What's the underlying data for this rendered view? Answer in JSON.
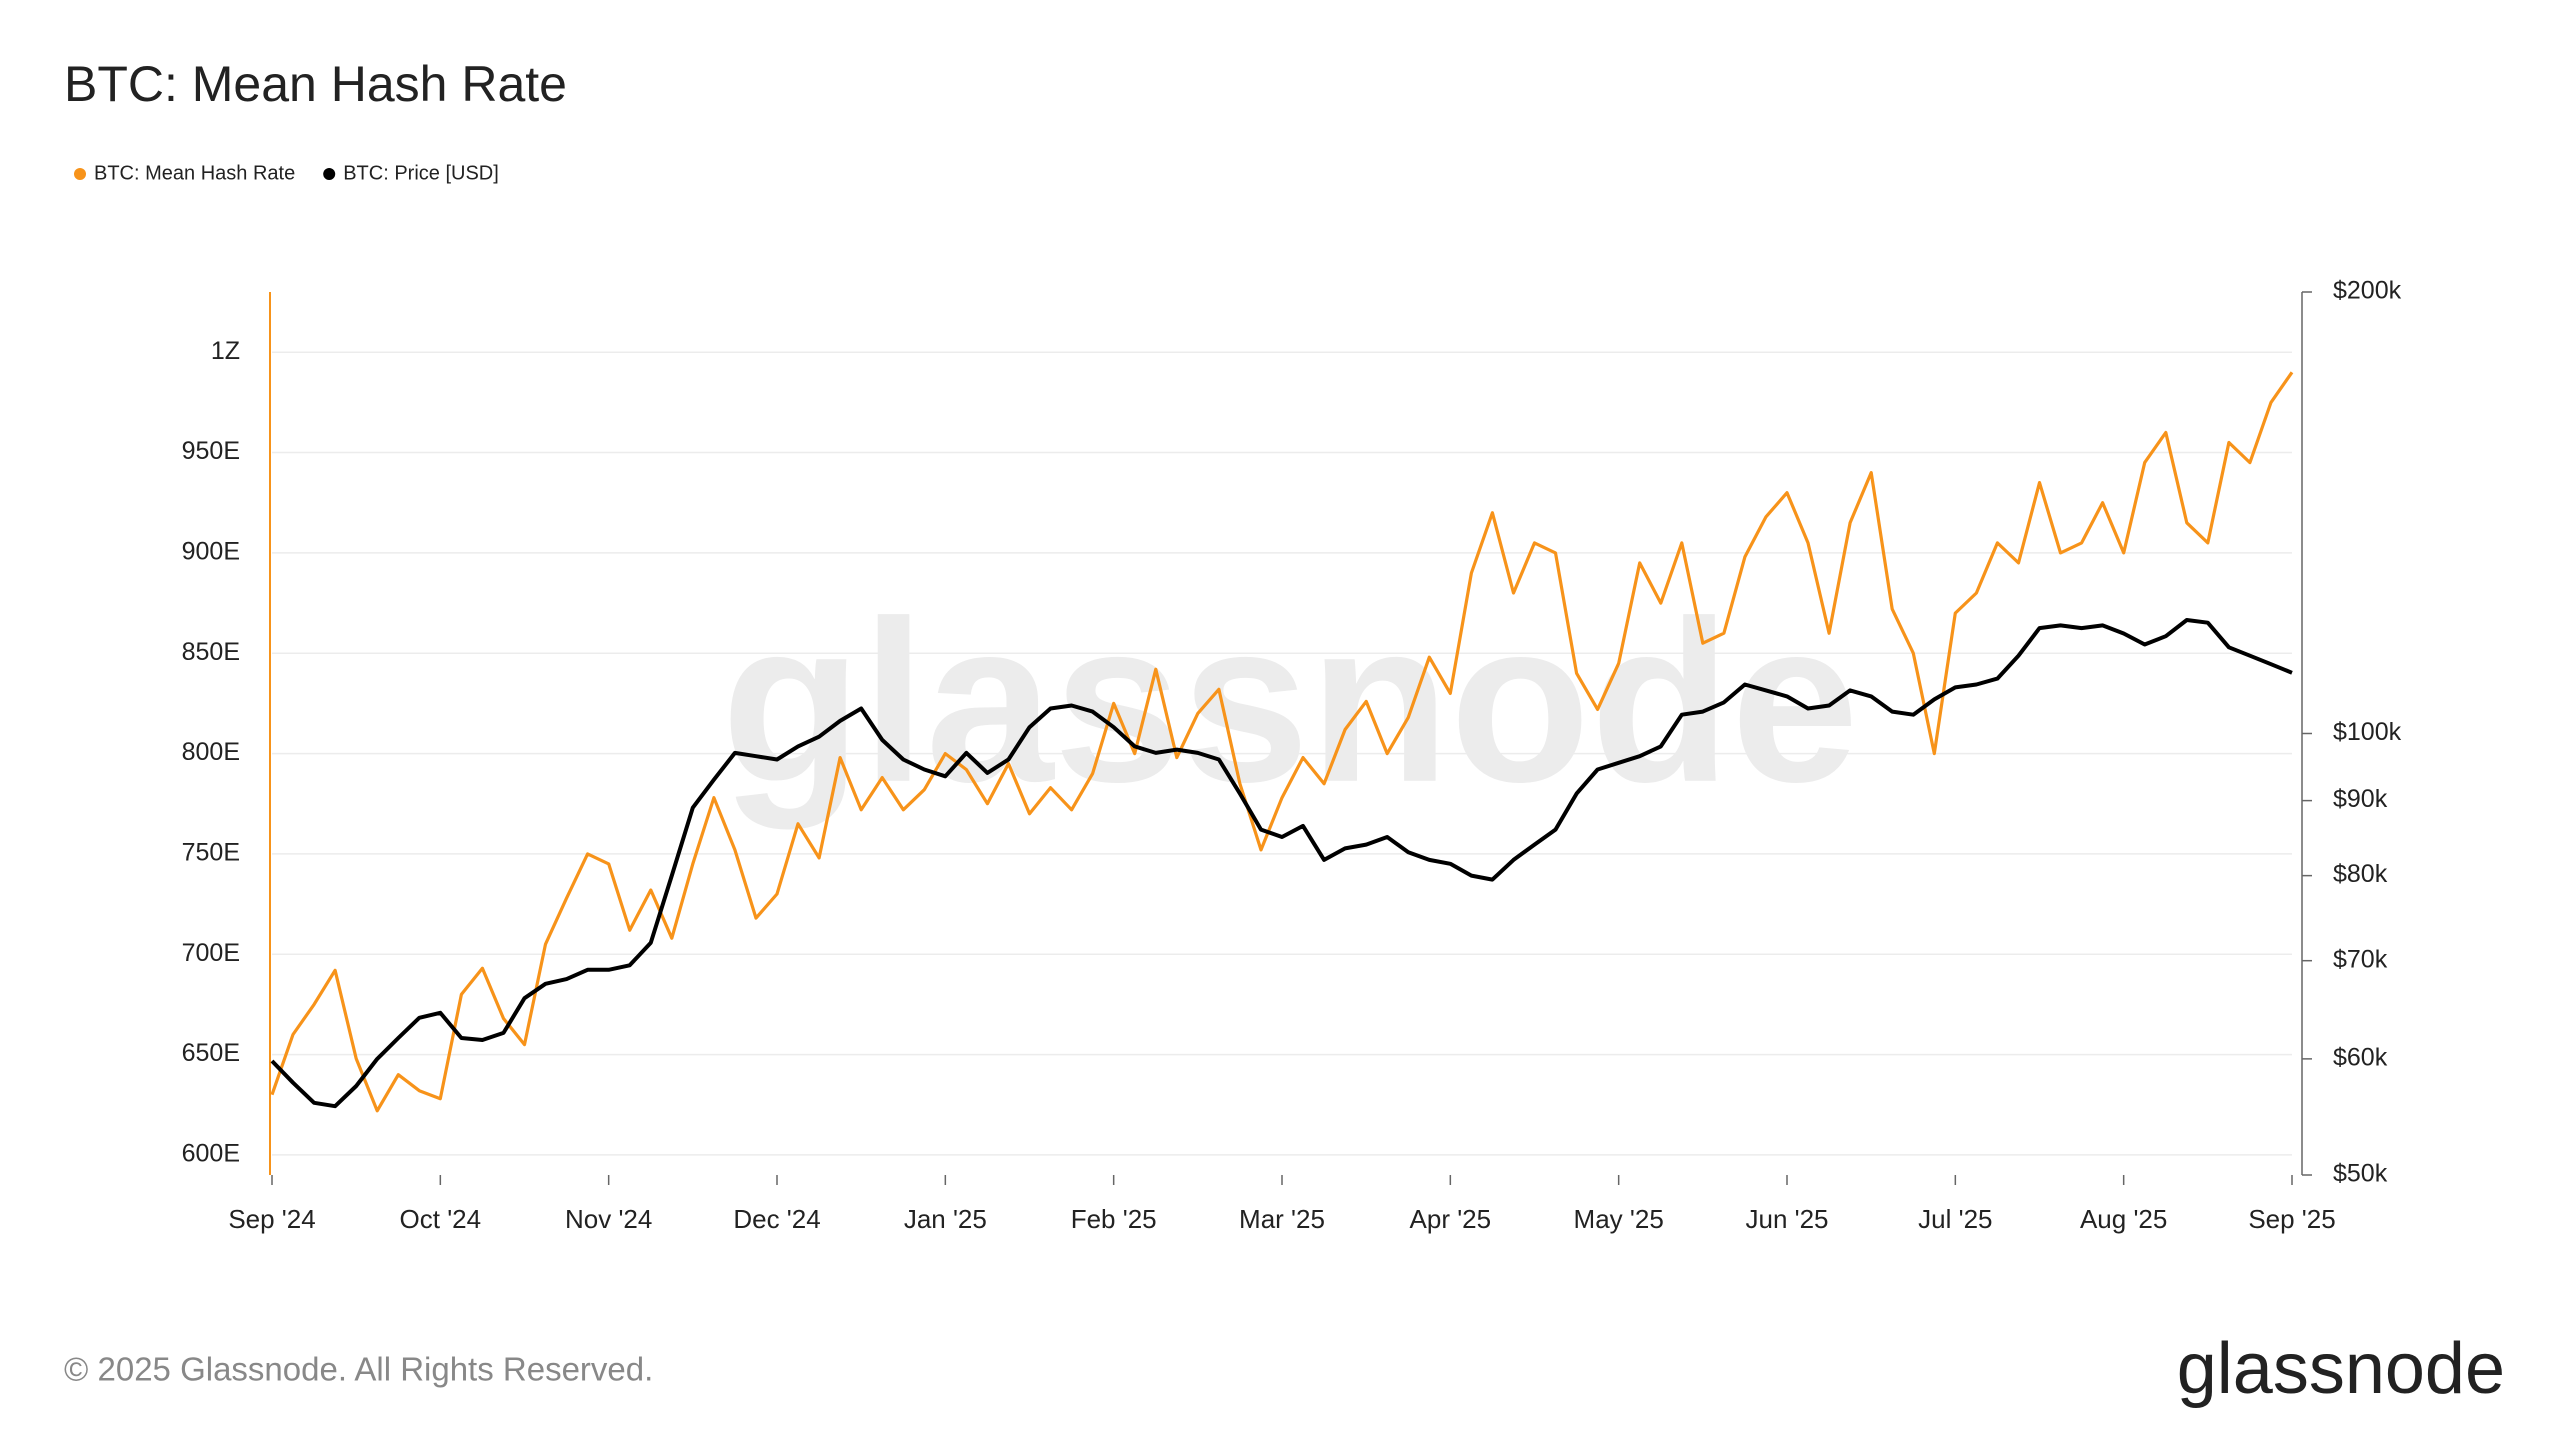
{
  "chart_data": {
    "type": "line",
    "title": "BTC: Mean Hash Rate",
    "legend": "top-left",
    "grid": true,
    "categories": [
      "Sep '24",
      null,
      null,
      null,
      null,
      null,
      null,
      null,
      "Oct '24",
      null,
      null,
      null,
      null,
      null,
      null,
      null,
      "Nov '24",
      null,
      null,
      null,
      null,
      null,
      null,
      null,
      "Dec '24",
      null,
      null,
      null,
      null,
      null,
      null,
      null,
      "Jan '25",
      null,
      null,
      null,
      null,
      null,
      null,
      null,
      "Feb '25",
      null,
      null,
      null,
      null,
      null,
      null,
      null,
      "Mar '25",
      null,
      null,
      null,
      null,
      null,
      null,
      null,
      "Apr '25",
      null,
      null,
      null,
      null,
      null,
      null,
      null,
      "May '25",
      null,
      null,
      null,
      null,
      null,
      null,
      null,
      "Jun '25",
      null,
      null,
      null,
      null,
      null,
      null,
      null,
      "Jul '25",
      null,
      null,
      null,
      null,
      null,
      null,
      null,
      "Aug '25",
      null,
      null,
      null,
      null,
      null,
      null,
      null,
      "Sep '25"
    ],
    "ylim": [
      590,
      1030
    ],
    "yticks": [
      {
        "value": 600,
        "label": "600E"
      },
      {
        "value": 650,
        "label": "650E"
      },
      {
        "value": 700,
        "label": "700E"
      },
      {
        "value": 750,
        "label": "750E"
      },
      {
        "value": 800,
        "label": "800E"
      },
      {
        "value": 850,
        "label": "850E"
      },
      {
        "value": 900,
        "label": "900E"
      },
      {
        "value": 950,
        "label": "950E"
      },
      {
        "value": 1000,
        "label": "1Z"
      }
    ],
    "y2lim": [
      50000,
      200000
    ],
    "y2scale": "log",
    "y2ticks": [
      {
        "value": 50000,
        "label": "$50k"
      },
      {
        "value": 60000,
        "label": "$60k"
      },
      {
        "value": 70000,
        "label": "$70k"
      },
      {
        "value": 80000,
        "label": "$80k"
      },
      {
        "value": 90000,
        "label": "$90k"
      },
      {
        "value": 100000,
        "label": "$100k"
      },
      {
        "value": 200000,
        "label": "$200k"
      }
    ],
    "series": [
      {
        "name": "BTC: Mean Hash Rate",
        "color": "#f7931a",
        "axis": "y",
        "values": [
          630,
          660,
          675,
          692,
          648,
          622,
          640,
          632,
          628,
          680,
          693,
          668,
          655,
          705,
          728,
          750,
          745,
          712,
          732,
          708,
          745,
          778,
          752,
          718,
          730,
          765,
          748,
          798,
          772,
          788,
          772,
          782,
          800,
          792,
          775,
          795,
          770,
          783,
          772,
          790,
          825,
          800,
          842,
          798,
          820,
          832,
          785,
          752,
          778,
          798,
          785,
          812,
          826,
          800,
          818,
          848,
          830,
          890,
          920,
          880,
          905,
          900,
          840,
          822,
          845,
          895,
          875,
          905,
          855,
          860,
          898,
          918,
          930,
          905,
          860,
          915,
          940,
          872,
          850,
          800,
          870,
          880,
          905,
          895,
          935,
          900,
          905,
          925,
          900,
          945,
          960,
          915,
          905,
          955,
          945,
          975,
          990
        ]
      },
      {
        "name": "BTC: Price [USD]",
        "color": "#000000",
        "axis": "y2",
        "values": [
          59800,
          57800,
          56000,
          55700,
          57500,
          60000,
          62000,
          64000,
          64500,
          62000,
          61800,
          62500,
          66000,
          67500,
          68000,
          69000,
          69000,
          69500,
          72000,
          80000,
          89000,
          93000,
          97000,
          96500,
          96000,
          98000,
          99500,
          102000,
          104000,
          99000,
          96000,
          94500,
          93500,
          97000,
          94000,
          96000,
          101000,
          104000,
          104500,
          103500,
          101000,
          98000,
          97000,
          97500,
          97000,
          96000,
          91000,
          86000,
          85000,
          86500,
          82000,
          83500,
          84000,
          85000,
          83000,
          82000,
          81500,
          80000,
          79500,
          82000,
          84000,
          86000,
          91000,
          94500,
          95500,
          96500,
          98000,
          103000,
          103500,
          105000,
          108000,
          107000,
          106000,
          104000,
          104500,
          107000,
          106000,
          103500,
          103000,
          105500,
          107500,
          108000,
          109000,
          113000,
          118000,
          118500,
          118000,
          118500,
          117000,
          115000,
          116500,
          119500,
          119000,
          114500,
          113000,
          111500,
          110000
        ]
      }
    ]
  },
  "watermark": "glassnode",
  "footer": "© 2025 Glassnode. All Rights Reserved.",
  "logo": "glassnode"
}
